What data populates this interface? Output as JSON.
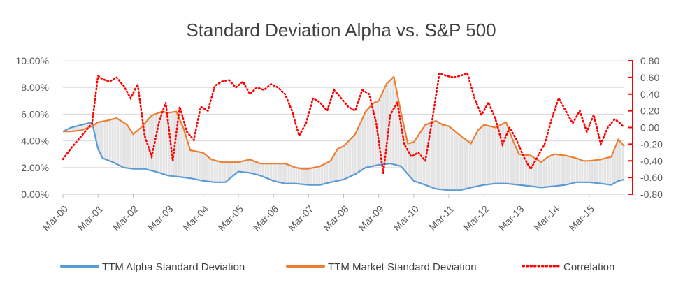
{
  "chart_data": {
    "type": "line",
    "title": "Standard Deviation Alpha vs. S&P 500",
    "x_ticks": [
      "Mar-00",
      "Mar-01",
      "Mar-02",
      "Mar-03",
      "Mar-04",
      "Mar-05",
      "Mar-06",
      "Mar-07",
      "Mar-08",
      "Mar-09",
      "Mar-10",
      "Mar-11",
      "Mar-12",
      "Mar-13",
      "Mar-14",
      "Mar-15"
    ],
    "x_range_years": [
      2000.17,
      2016.17
    ],
    "y_left": {
      "min": 0,
      "max": 0.1,
      "ticks": [
        "0.00%",
        "2.00%",
        "4.00%",
        "6.00%",
        "8.00%",
        "10.00%"
      ]
    },
    "y_right": {
      "min": -0.8,
      "max": 0.8,
      "ticks": [
        "-0.80",
        "-0.60",
        "-0.40",
        "-0.20",
        "0.00",
        "0.20",
        "0.40",
        "0.60",
        "0.80"
      ]
    },
    "series": [
      {
        "name": "TTM Alpha Standard Deviation",
        "axis": "left",
        "color": "#5B9BD5",
        "x": [
          2000.17,
          2000.4,
          2000.7,
          2001.0,
          2001.17,
          2001.3,
          2001.6,
          2001.9,
          2002.17,
          2002.5,
          2002.8,
          2003.17,
          2003.5,
          2003.8,
          2004.17,
          2004.5,
          2004.8,
          2005.17,
          2005.5,
          2005.8,
          2006.17,
          2006.5,
          2006.8,
          2007.17,
          2007.5,
          2007.8,
          2008.17,
          2008.5,
          2008.8,
          2009.17,
          2009.5,
          2009.8,
          2010.17,
          2010.5,
          2010.8,
          2011.17,
          2011.5,
          2011.8,
          2012.17,
          2012.5,
          2012.8,
          2013.17,
          2013.5,
          2013.8,
          2014.17,
          2014.5,
          2014.8,
          2015.17,
          2015.5,
          2015.8,
          2016.0,
          2016.17
        ],
        "values": [
          0.047,
          0.05,
          0.052,
          0.054,
          0.034,
          0.027,
          0.024,
          0.02,
          0.019,
          0.019,
          0.017,
          0.014,
          0.013,
          0.012,
          0.01,
          0.009,
          0.009,
          0.017,
          0.016,
          0.014,
          0.01,
          0.008,
          0.008,
          0.007,
          0.007,
          0.009,
          0.011,
          0.015,
          0.02,
          0.022,
          0.023,
          0.021,
          0.01,
          0.007,
          0.004,
          0.003,
          0.003,
          0.005,
          0.007,
          0.008,
          0.008,
          0.007,
          0.006,
          0.005,
          0.006,
          0.007,
          0.009,
          0.009,
          0.008,
          0.007,
          0.01,
          0.011
        ]
      },
      {
        "name": "TTM Market Standard Deviation",
        "axis": "left",
        "color": "#ED7D31",
        "x": [
          2000.17,
          2000.4,
          2000.7,
          2001.0,
          2001.17,
          2001.4,
          2001.7,
          2002.0,
          2002.17,
          2002.4,
          2002.7,
          2003.0,
          2003.17,
          2003.4,
          2003.6,
          2003.8,
          2004.17,
          2004.4,
          2004.7,
          2005.0,
          2005.17,
          2005.5,
          2005.8,
          2006.17,
          2006.5,
          2006.8,
          2007.0,
          2007.17,
          2007.5,
          2007.8,
          2008.0,
          2008.17,
          2008.5,
          2008.8,
          2009.0,
          2009.17,
          2009.4,
          2009.6,
          2009.8,
          2010.0,
          2010.17,
          2010.5,
          2010.8,
          2011.0,
          2011.17,
          2011.5,
          2011.8,
          2012.0,
          2012.17,
          2012.5,
          2012.8,
          2013.0,
          2013.17,
          2013.5,
          2013.8,
          2014.0,
          2014.17,
          2014.5,
          2014.8,
          2015.0,
          2015.17,
          2015.5,
          2015.8,
          2016.0,
          2016.17
        ],
        "values": [
          0.047,
          0.047,
          0.048,
          0.051,
          0.054,
          0.055,
          0.057,
          0.052,
          0.045,
          0.05,
          0.059,
          0.062,
          0.061,
          0.062,
          0.05,
          0.033,
          0.031,
          0.026,
          0.024,
          0.024,
          0.024,
          0.026,
          0.023,
          0.023,
          0.023,
          0.02,
          0.019,
          0.019,
          0.021,
          0.025,
          0.034,
          0.036,
          0.045,
          0.062,
          0.068,
          0.07,
          0.083,
          0.088,
          0.062,
          0.038,
          0.039,
          0.052,
          0.055,
          0.052,
          0.051,
          0.044,
          0.038,
          0.048,
          0.052,
          0.05,
          0.054,
          0.04,
          0.03,
          0.029,
          0.024,
          0.028,
          0.03,
          0.029,
          0.027,
          0.025,
          0.025,
          0.026,
          0.028,
          0.041,
          0.036
        ]
      },
      {
        "name": "Correlation",
        "axis": "right",
        "color": "#FF0000",
        "x": [
          2000.17,
          2000.4,
          2000.6,
          2000.8,
          2001.0,
          2001.17,
          2001.3,
          2001.5,
          2001.7,
          2001.9,
          2002.1,
          2002.3,
          2002.5,
          2002.7,
          2002.9,
          2003.1,
          2003.3,
          2003.5,
          2003.7,
          2003.9,
          2004.1,
          2004.3,
          2004.5,
          2004.7,
          2004.9,
          2005.1,
          2005.3,
          2005.5,
          2005.7,
          2005.9,
          2006.1,
          2006.3,
          2006.5,
          2006.7,
          2006.9,
          2007.1,
          2007.3,
          2007.5,
          2007.7,
          2007.9,
          2008.1,
          2008.3,
          2008.5,
          2008.7,
          2008.9,
          2009.1,
          2009.3,
          2009.5,
          2009.7,
          2009.9,
          2010.1,
          2010.3,
          2010.5,
          2010.7,
          2010.9,
          2011.1,
          2011.3,
          2011.5,
          2011.7,
          2011.9,
          2012.1,
          2012.3,
          2012.5,
          2012.7,
          2012.9,
          2013.1,
          2013.3,
          2013.5,
          2013.7,
          2013.9,
          2014.1,
          2014.3,
          2014.5,
          2014.7,
          2014.9,
          2015.1,
          2015.3,
          2015.5,
          2015.7,
          2015.9,
          2016.05,
          2016.17
        ],
        "values": [
          -0.38,
          -0.25,
          -0.15,
          -0.05,
          0.05,
          0.62,
          0.58,
          0.55,
          0.6,
          0.5,
          0.35,
          0.52,
          -0.1,
          -0.35,
          0.05,
          0.3,
          -0.4,
          0.25,
          -0.05,
          -0.15,
          0.25,
          0.2,
          0.5,
          0.55,
          0.57,
          0.48,
          0.55,
          0.4,
          0.48,
          0.45,
          0.52,
          0.48,
          0.4,
          0.2,
          -0.1,
          0.05,
          0.35,
          0.3,
          0.2,
          0.45,
          0.35,
          0.25,
          0.2,
          0.45,
          0.4,
          0.05,
          -0.55,
          0.15,
          0.3,
          -0.2,
          -0.35,
          -0.3,
          -0.4,
          0.1,
          0.65,
          0.62,
          0.6,
          0.62,
          0.65,
          0.35,
          0.15,
          0.3,
          0.1,
          -0.2,
          0.0,
          -0.15,
          -0.35,
          -0.5,
          -0.35,
          -0.2,
          0.1,
          0.35,
          0.2,
          0.05,
          0.2,
          -0.05,
          0.15,
          -0.2,
          0.0,
          0.1,
          0.05,
          0.0
        ]
      }
    ],
    "legend": [
      {
        "label": "TTM Alpha Standard Deviation",
        "color": "#5B9BD5",
        "style": "solid"
      },
      {
        "label": "TTM Market Standard Deviation",
        "color": "#ED7D31",
        "style": "solid"
      },
      {
        "label": "Correlation",
        "color": "#FF0000",
        "style": "dotted"
      }
    ],
    "legend_position": "bottom",
    "grid": true
  }
}
